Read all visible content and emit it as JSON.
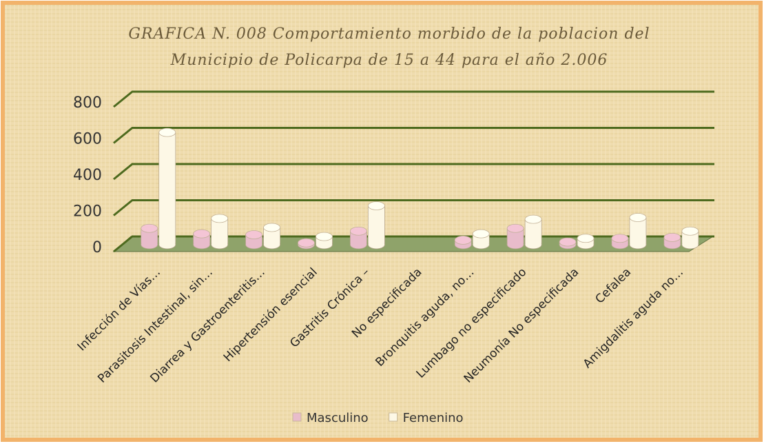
{
  "chart_data": {
    "type": "bar3d",
    "title": [
      "GRAFICA N. 008  Comportamiento  morbido de la poblacion del",
      "Municipio de Policarpa  de 15 a 44 para el año 2.006"
    ],
    "categories": [
      "Infección de Vías…",
      "Parasitosis  Intestinal, sin…",
      "Diarrea y Gastroenteritis…",
      "Hipertensión esencial",
      "Gastritis Crónica –",
      "No especificada",
      "Bronquitis aguda, no…",
      "Lumbago no especificado",
      "Neumonía No especificada",
      "Cefalea",
      "Amigdalitis aguda no…"
    ],
    "series": [
      {
        "name": "Masculino",
        "color": "#e8bccb",
        "values": [
          90,
          60,
          55,
          10,
          75,
          0,
          25,
          90,
          15,
          35,
          40
        ]
      },
      {
        "name": "Femenino",
        "color": "#fdf8e6",
        "values": [
          620,
          145,
          95,
          45,
          215,
          0,
          60,
          140,
          35,
          150,
          75
        ]
      }
    ],
    "ylim": [
      0,
      800
    ],
    "yticks": [
      0,
      200,
      400,
      600,
      800
    ],
    "grid": true,
    "legend": "bottom"
  }
}
